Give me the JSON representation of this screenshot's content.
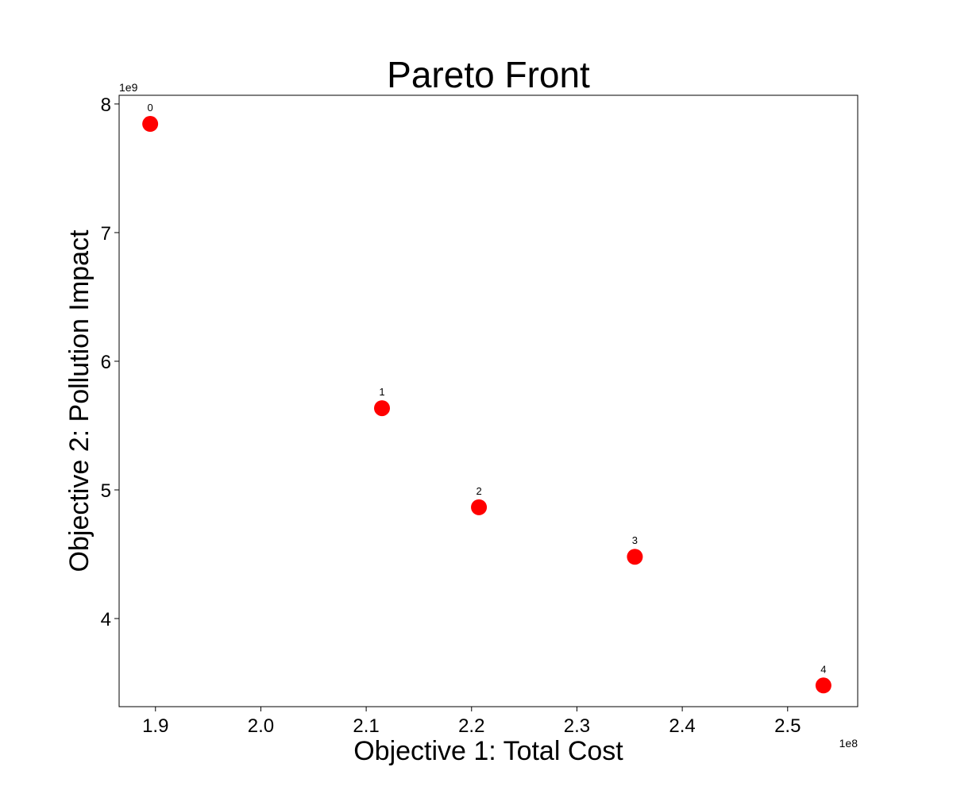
{
  "chart_data": {
    "type": "scatter",
    "title": "Pareto Front",
    "xlabel": "Objective 1: Total Cost",
    "ylabel": "Objective 2: Pollution Impact",
    "x_offset_label": "1e8",
    "y_offset_label": "1e9",
    "xlim": [
      1.8655,
      2.5665
    ],
    "ylim": [
      3.315,
      8.0675
    ],
    "x_ticks": [
      1.9,
      2.0,
      2.1,
      2.2,
      2.3,
      2.4,
      2.5
    ],
    "y_ticks": [
      4,
      5,
      6,
      7,
      8
    ],
    "x_tick_labels": [
      "1.9",
      "2.0",
      "2.1",
      "2.2",
      "2.3",
      "2.4",
      "2.5"
    ],
    "y_tick_labels": [
      "4",
      "5",
      "6",
      "7",
      "8"
    ],
    "grid": false,
    "marker_color": "#ff0000",
    "points": [
      {
        "label": "0",
        "x": 1.895,
        "y": 7.845
      },
      {
        "label": "1",
        "x": 2.115,
        "y": 5.635
      },
      {
        "label": "2",
        "x": 2.207,
        "y": 4.865
      },
      {
        "label": "3",
        "x": 2.355,
        "y": 4.48
      },
      {
        "label": "4",
        "x": 2.534,
        "y": 3.48
      }
    ]
  }
}
